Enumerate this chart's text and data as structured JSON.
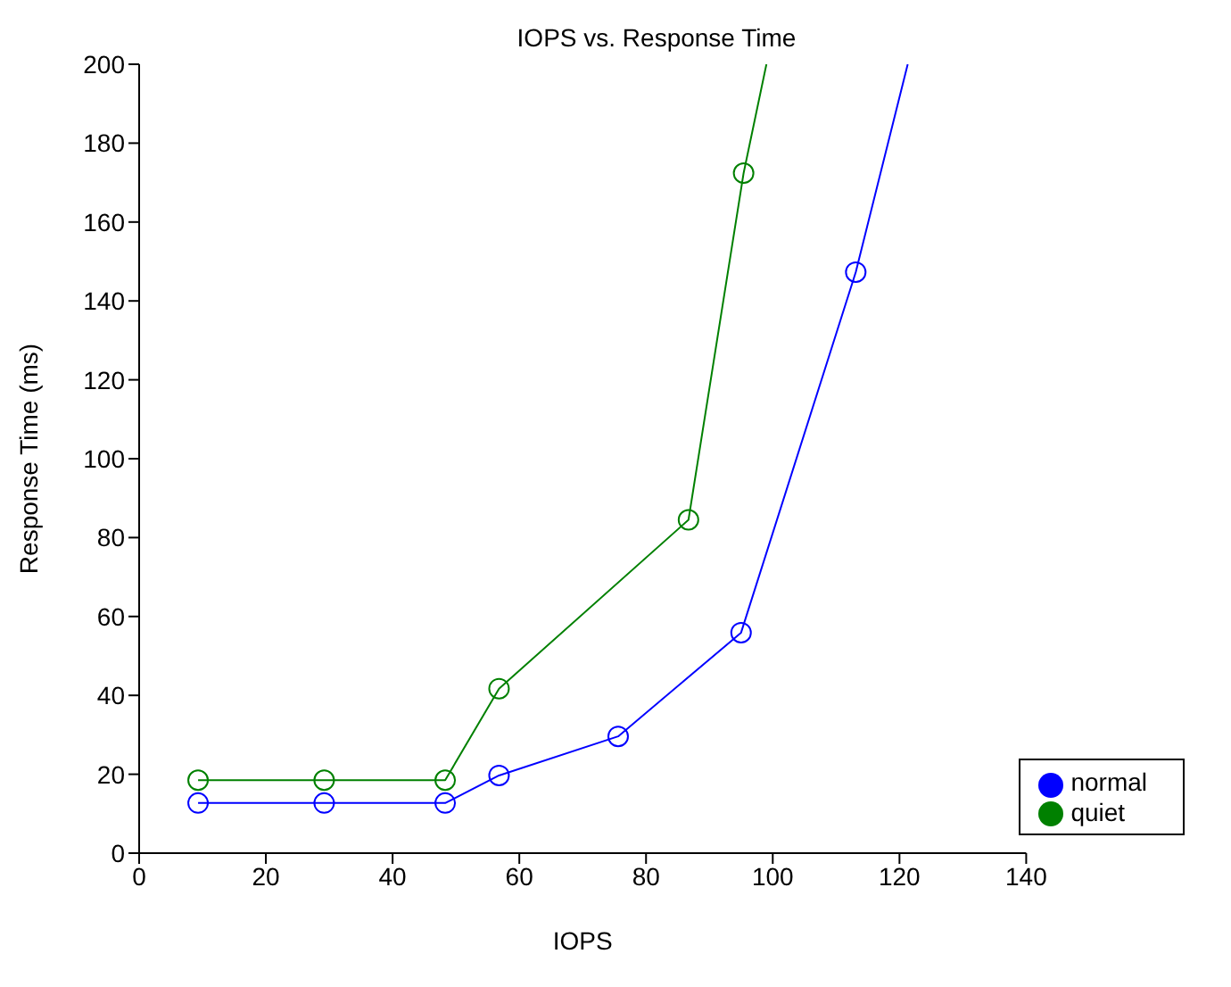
{
  "chart_data": {
    "type": "line",
    "title": "IOPS vs. Response Time",
    "xlabel": "IOPS",
    "ylabel": "Response Time (ms)",
    "xlim": [
      0,
      140
    ],
    "xticks": [
      0,
      20,
      40,
      60,
      80,
      100,
      120,
      140
    ],
    "ylim": [
      0,
      200
    ],
    "yticks": [
      0,
      20,
      40,
      60,
      80,
      100,
      120,
      140,
      160,
      180,
      200
    ],
    "series": [
      {
        "name": "normal",
        "color": "#0000ff",
        "x": [
          9.3,
          29.2,
          48.3,
          56.8,
          75.6,
          95.0,
          113.1,
          121.3
        ],
        "values": [
          12.7,
          12.7,
          12.7,
          19.7,
          29.6,
          55.9,
          147.3,
          200
        ]
      },
      {
        "name": "quiet",
        "color": "#008000",
        "x": [
          9.3,
          29.2,
          48.3,
          56.8,
          86.7,
          95.4,
          99.0
        ],
        "values": [
          18.5,
          18.5,
          18.5,
          41.7,
          84.5,
          172.4,
          200
        ]
      }
    ],
    "marker": "circle",
    "grid": false,
    "legend": "bottom right"
  }
}
